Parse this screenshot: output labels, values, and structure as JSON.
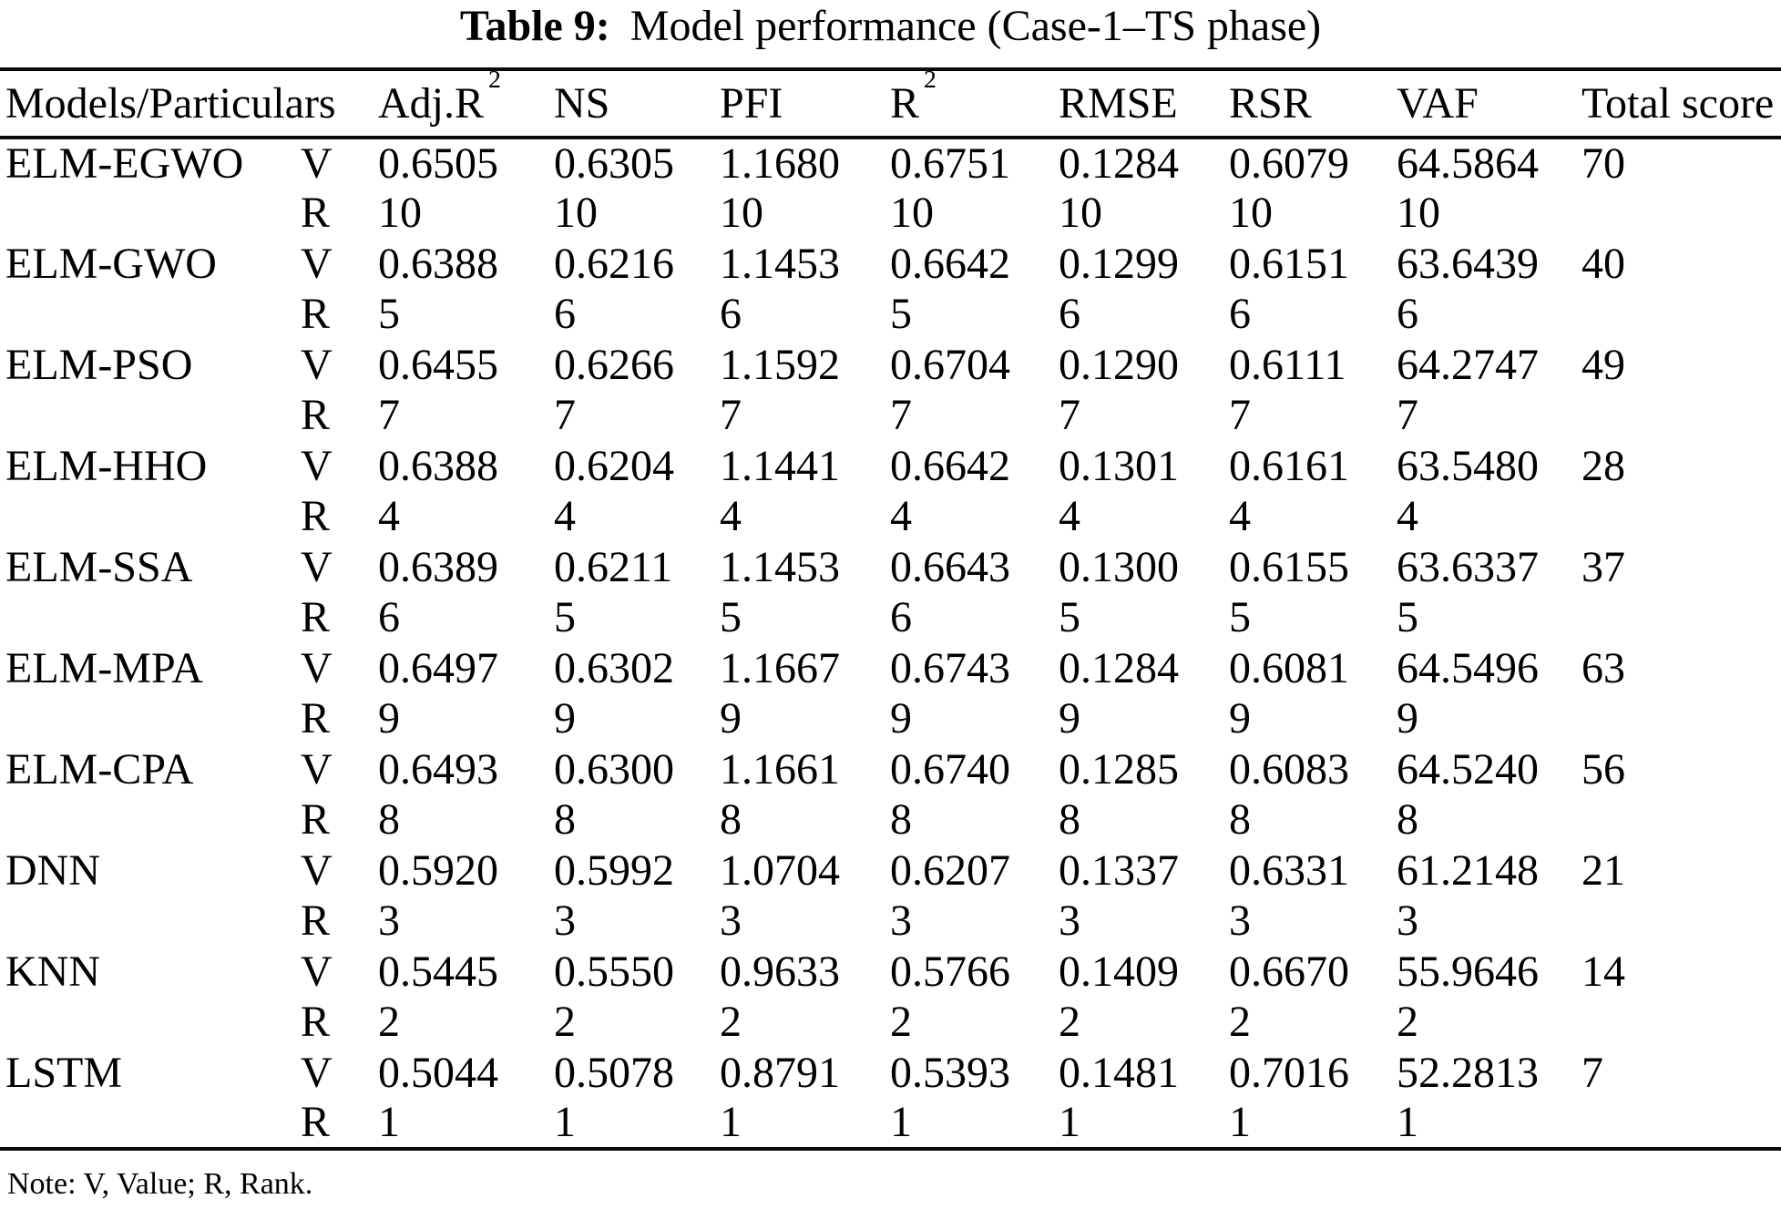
{
  "title": {
    "label": "Table 9:",
    "text": "Model performance (Case-1–TS phase)"
  },
  "table": {
    "corner_header": "Models/Particulars",
    "columns": [
      {
        "label": "Adj.R",
        "sup": "2"
      },
      {
        "label": "NS",
        "sup": ""
      },
      {
        "label": "PFI",
        "sup": ""
      },
      {
        "label": "R",
        "sup": "2"
      },
      {
        "label": "RMSE",
        "sup": ""
      },
      {
        "label": "RSR",
        "sup": ""
      },
      {
        "label": "VAF",
        "sup": ""
      },
      {
        "label": "Total score",
        "sup": ""
      }
    ],
    "value_row_key": "V",
    "rank_row_key": "R",
    "rows": [
      {
        "model": "ELM-EGWO",
        "values": [
          "0.6505",
          "0.6305",
          "1.1680",
          "0.6751",
          "0.1284",
          "0.6079",
          "64.5864"
        ],
        "total": "70",
        "ranks": [
          "10",
          "10",
          "10",
          "10",
          "10",
          "10",
          "10"
        ]
      },
      {
        "model": "ELM-GWO",
        "values": [
          "0.6388",
          "0.6216",
          "1.1453",
          "0.6642",
          "0.1299",
          "0.6151",
          "63.6439"
        ],
        "total": "40",
        "ranks": [
          "5",
          "6",
          "6",
          "5",
          "6",
          "6",
          "6"
        ]
      },
      {
        "model": "ELM-PSO",
        "values": [
          "0.6455",
          "0.6266",
          "1.1592",
          "0.6704",
          "0.1290",
          "0.6111",
          "64.2747"
        ],
        "total": "49",
        "ranks": [
          "7",
          "7",
          "7",
          "7",
          "7",
          "7",
          "7"
        ]
      },
      {
        "model": "ELM-HHO",
        "values": [
          "0.6388",
          "0.6204",
          "1.1441",
          "0.6642",
          "0.1301",
          "0.6161",
          "63.5480"
        ],
        "total": "28",
        "ranks": [
          "4",
          "4",
          "4",
          "4",
          "4",
          "4",
          "4"
        ]
      },
      {
        "model": "ELM-SSA",
        "values": [
          "0.6389",
          "0.6211",
          "1.1453",
          "0.6643",
          "0.1300",
          "0.6155",
          "63.6337"
        ],
        "total": "37",
        "ranks": [
          "6",
          "5",
          "5",
          "6",
          "5",
          "5",
          "5"
        ]
      },
      {
        "model": "ELM-MPA",
        "values": [
          "0.6497",
          "0.6302",
          "1.1667",
          "0.6743",
          "0.1284",
          "0.6081",
          "64.5496"
        ],
        "total": "63",
        "ranks": [
          "9",
          "9",
          "9",
          "9",
          "9",
          "9",
          "9"
        ]
      },
      {
        "model": "ELM-CPA",
        "values": [
          "0.6493",
          "0.6300",
          "1.1661",
          "0.6740",
          "0.1285",
          "0.6083",
          "64.5240"
        ],
        "total": "56",
        "ranks": [
          "8",
          "8",
          "8",
          "8",
          "8",
          "8",
          "8"
        ]
      },
      {
        "model": "DNN",
        "values": [
          "0.5920",
          "0.5992",
          "1.0704",
          "0.6207",
          "0.1337",
          "0.6331",
          "61.2148"
        ],
        "total": "21",
        "ranks": [
          "3",
          "3",
          "3",
          "3",
          "3",
          "3",
          "3"
        ]
      },
      {
        "model": "KNN",
        "values": [
          "0.5445",
          "0.5550",
          "0.9633",
          "0.5766",
          "0.1409",
          "0.6670",
          "55.9646"
        ],
        "total": "14",
        "ranks": [
          "2",
          "2",
          "2",
          "2",
          "2",
          "2",
          "2"
        ]
      },
      {
        "model": "LSTM",
        "values": [
          "0.5044",
          "0.5078",
          "0.8791",
          "0.5393",
          "0.1481",
          "0.7016",
          "52.2813"
        ],
        "total": "7",
        "ranks": [
          "1",
          "1",
          "1",
          "1",
          "1",
          "1",
          "1"
        ]
      }
    ]
  },
  "note": "Note: V, Value; R, Rank."
}
